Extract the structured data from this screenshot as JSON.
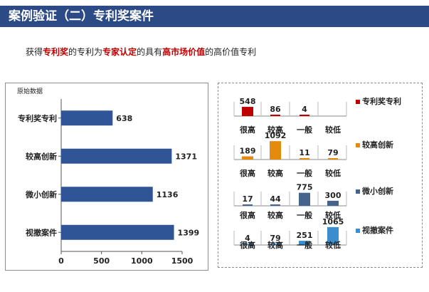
{
  "header": {
    "title": "案例验证（二）专利奖案件"
  },
  "subtitle": {
    "p1": "获得",
    "h1": "专利奖",
    "p2": "的专利为",
    "h2": "专家认定",
    "p3": "的具有",
    "h3": "高市场价值",
    "p4": "的高价值专利"
  },
  "chart_data": [
    {
      "type": "bar",
      "orientation": "horizontal",
      "title": "原始数据",
      "categories": [
        "专利奖专利",
        "较高创新",
        "微小创新",
        "视撤案件"
      ],
      "values": [
        638,
        1371,
        1136,
        1399
      ],
      "xlim": [
        0,
        1500
      ],
      "xticks": [
        0,
        500,
        1000,
        1500
      ],
      "color": "#2f5597",
      "grid": false
    },
    {
      "type": "bar",
      "layout": "small-multiples",
      "categories": [
        "很高",
        "较高",
        "一般",
        "较低"
      ],
      "series": [
        {
          "name": "专利奖专利",
          "values": [
            548,
            86,
            4,
            null
          ],
          "color": "#c00000"
        },
        {
          "name": "较高创新",
          "values": [
            189,
            1092,
            11,
            79
          ],
          "color": "#e48a0c"
        },
        {
          "name": "微小创新",
          "values": [
            17,
            44,
            775,
            300
          ],
          "color": "#44648e"
        },
        {
          "name": "视撤案件",
          "values": [
            4,
            79,
            251,
            1065
          ],
          "color": "#3a8ed0"
        }
      ],
      "ylim": [
        0,
        1100
      ],
      "legend": "right"
    }
  ]
}
